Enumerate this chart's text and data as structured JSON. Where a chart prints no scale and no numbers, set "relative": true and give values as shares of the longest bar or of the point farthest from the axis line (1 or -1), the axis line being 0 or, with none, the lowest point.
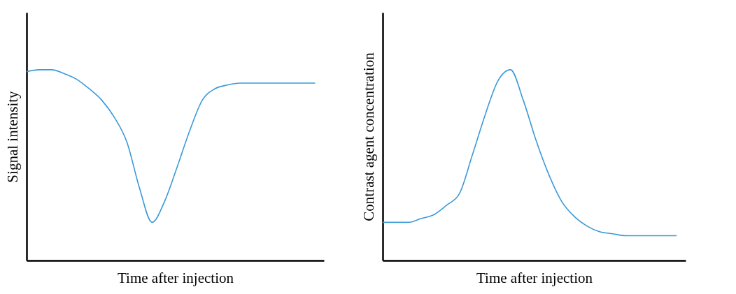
{
  "chart_data": [
    {
      "type": "line",
      "relative": true,
      "xlabel": "Time after injection",
      "ylabel": "Signal intensity",
      "tick_labels": false,
      "grid": false,
      "marker": "none",
      "line_style": "solid",
      "categories": [
        null,
        null,
        null,
        null,
        null,
        null,
        null,
        null,
        null,
        null,
        null,
        null,
        null,
        null,
        null,
        null,
        null,
        null,
        null,
        null,
        null,
        null,
        null,
        null
      ],
      "series": [
        {
          "color": "#3a9ad9",
          "values": [
            0.99,
            1.0,
            1.0,
            0.98,
            0.95,
            0.9,
            0.84,
            0.75,
            0.62,
            0.38,
            0.2,
            0.31,
            0.49,
            0.68,
            0.84,
            0.9,
            0.92,
            0.93,
            0.93,
            0.93,
            0.93,
            0.93,
            0.93,
            0.93
          ]
        }
      ]
    },
    {
      "type": "line",
      "relative": true,
      "xlabel": "Time after injection",
      "ylabel": "Contrast agent concentration",
      "tick_labels": false,
      "grid": false,
      "marker": "none",
      "line_style": "solid",
      "categories": [
        null,
        null,
        null,
        null,
        null,
        null,
        null,
        null,
        null,
        null,
        null,
        null,
        null,
        null,
        null,
        null,
        null,
        null,
        null,
        null,
        null,
        null,
        null,
        null
      ],
      "series": [
        {
          "color": "#3a9ad9",
          "values": [
            0.2,
            0.2,
            0.2,
            0.22,
            0.24,
            0.29,
            0.35,
            0.55,
            0.76,
            0.94,
            1.0,
            0.84,
            0.63,
            0.45,
            0.31,
            0.23,
            0.18,
            0.15,
            0.14,
            0.13,
            0.13,
            0.13,
            0.13,
            0.13
          ]
        }
      ]
    }
  ]
}
